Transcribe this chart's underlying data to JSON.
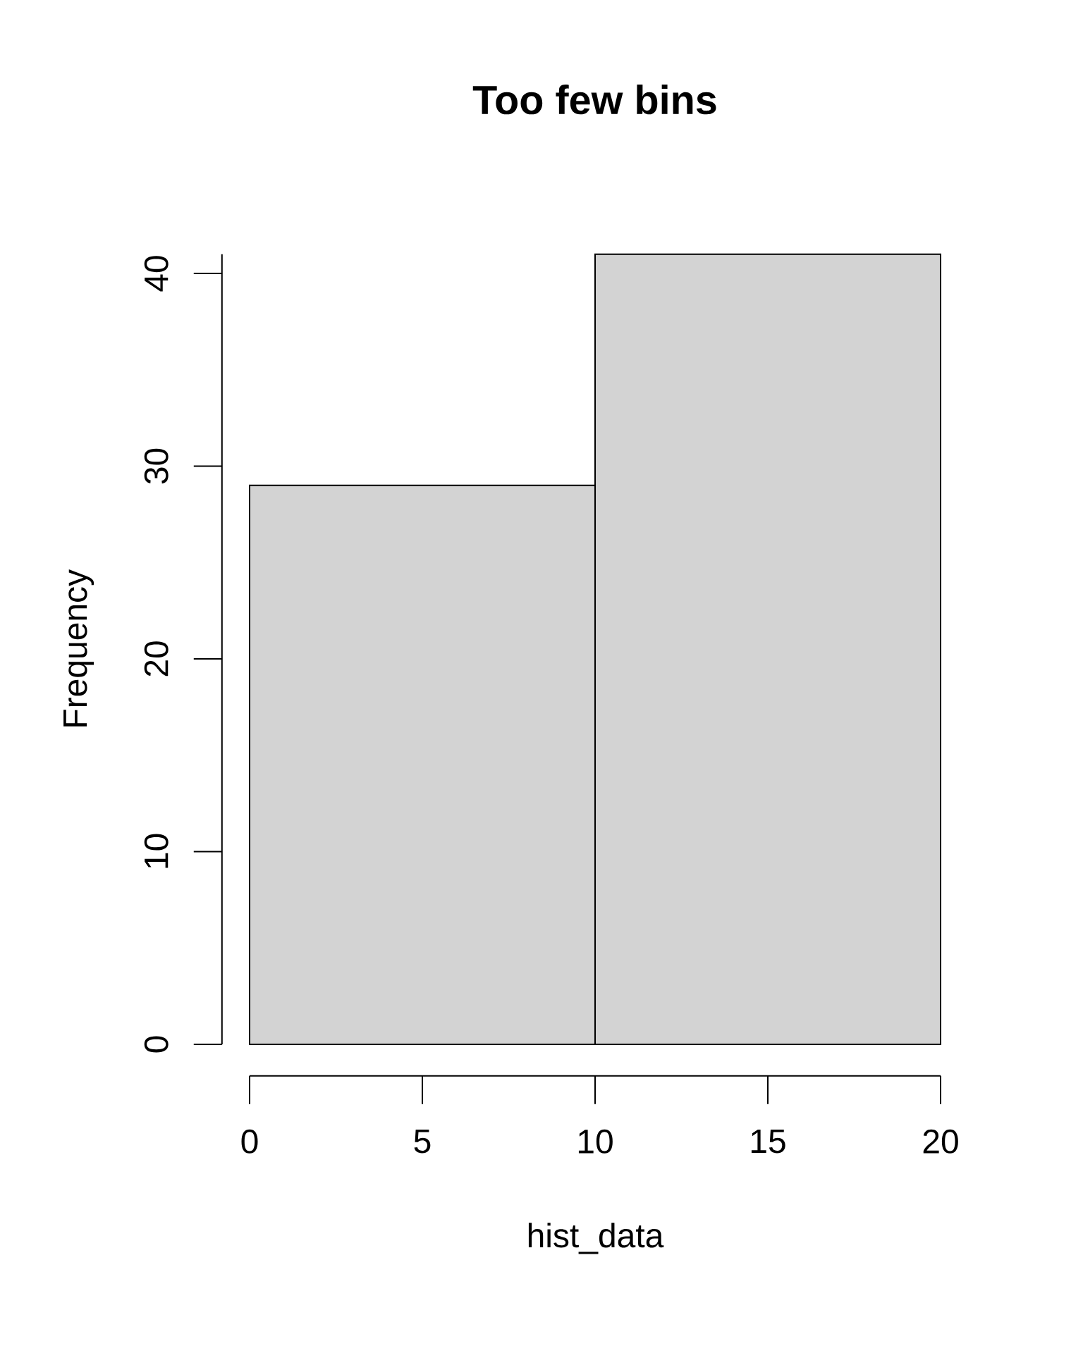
{
  "chart_data": {
    "type": "histogram",
    "title": "Too few bins",
    "xlabel": "hist_data",
    "ylabel": "Frequency",
    "bins": [
      0,
      10,
      20
    ],
    "values": [
      29,
      41
    ],
    "color": "#d3d3d3",
    "xlim": [
      0,
      20
    ],
    "ylim": [
      0,
      41
    ],
    "xticks": [
      0,
      5,
      10,
      15,
      20
    ],
    "yticks": [
      0,
      10,
      20,
      30,
      40
    ]
  }
}
